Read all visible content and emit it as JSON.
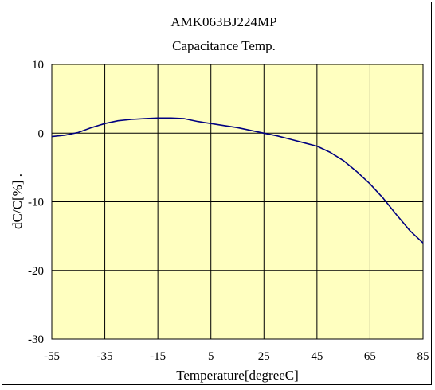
{
  "chart_data": {
    "type": "line",
    "title": "AMK063BJ224MP",
    "subtitle": "Capacitance Temp.",
    "xlabel": "Temperature[degreeC]",
    "ylabel": "dC/C[%] .",
    "xlim": [
      -55,
      85
    ],
    "ylim": [
      -30,
      10
    ],
    "x_ticks": [
      -55,
      -35,
      -15,
      5,
      25,
      45,
      65,
      85
    ],
    "y_ticks": [
      10,
      0,
      -10,
      -20,
      -30
    ],
    "x_tick_labels": [
      "-55",
      "-35",
      "-15",
      "5",
      "25",
      "45",
      "65",
      "85"
    ],
    "y_tick_labels": [
      "10",
      "0",
      "-10",
      "-20",
      "-30"
    ],
    "grid": true,
    "plot_background": "#FFFFC0",
    "line_color": "#000080",
    "series": [
      {
        "x": [
          -55,
          -50,
          -45,
          -40,
          -35,
          -30,
          -25,
          -20,
          -15,
          -10,
          -5,
          0,
          5,
          10,
          15,
          20,
          25,
          30,
          35,
          40,
          45,
          50,
          55,
          60,
          65,
          70,
          75,
          80,
          85
        ],
        "values": [
          -0.5,
          -0.3,
          0.1,
          0.8,
          1.4,
          1.8,
          2.0,
          2.1,
          2.2,
          2.2,
          2.1,
          1.7,
          1.4,
          1.1,
          0.8,
          0.4,
          0.0,
          -0.4,
          -0.9,
          -1.4,
          -1.9,
          -2.8,
          -4.0,
          -5.6,
          -7.4,
          -9.5,
          -11.9,
          -14.2,
          -16.0
        ]
      }
    ]
  }
}
